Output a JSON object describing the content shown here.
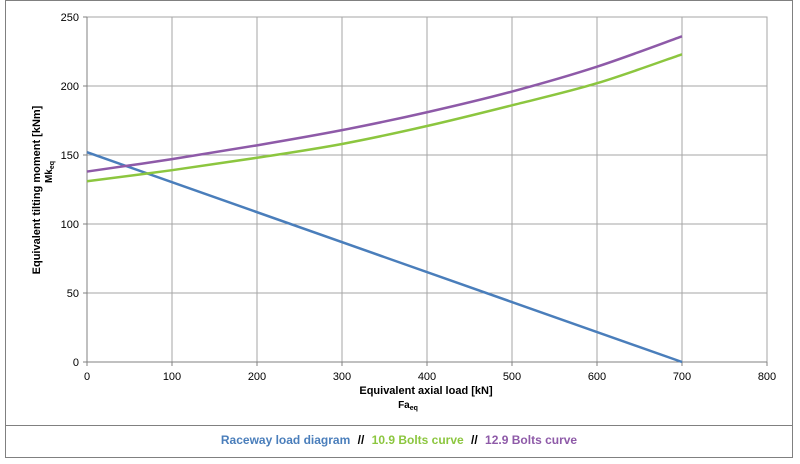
{
  "chart_data": {
    "type": "line",
    "xlabel": "Equivalent axial load [kN]",
    "xlabel_symbol": "Fa",
    "xlabel_symbol_sub": "eq",
    "ylabel": "Equivalent tilting moment [kNm]",
    "ylabel_symbol": "Mk",
    "ylabel_symbol_sub": "eq",
    "xlim": [
      0,
      800
    ],
    "ylim": [
      0,
      250
    ],
    "x_ticks": [
      0,
      100,
      200,
      300,
      400,
      500,
      600,
      700,
      800
    ],
    "y_ticks": [
      0,
      50,
      100,
      150,
      200,
      250
    ],
    "grid": true,
    "legend_position": "bottom",
    "series": [
      {
        "name": "Raceway load diagram",
        "color": "#4a7ebb",
        "x": [
          0,
          700
        ],
        "y": [
          152,
          0
        ]
      },
      {
        "name": "10.9 Bolts curve",
        "color": "#8cc63f",
        "x": [
          0,
          100,
          200,
          300,
          400,
          500,
          600,
          700
        ],
        "y": [
          131,
          139,
          148,
          158,
          171,
          186,
          202,
          223
        ]
      },
      {
        "name": "12.9 Bolts curve",
        "color": "#8e5aa8",
        "x": [
          0,
          100,
          200,
          300,
          400,
          500,
          600,
          700
        ],
        "y": [
          138,
          147,
          157,
          168,
          181,
          196,
          214,
          236
        ]
      }
    ]
  },
  "legend": {
    "separator": "//"
  }
}
